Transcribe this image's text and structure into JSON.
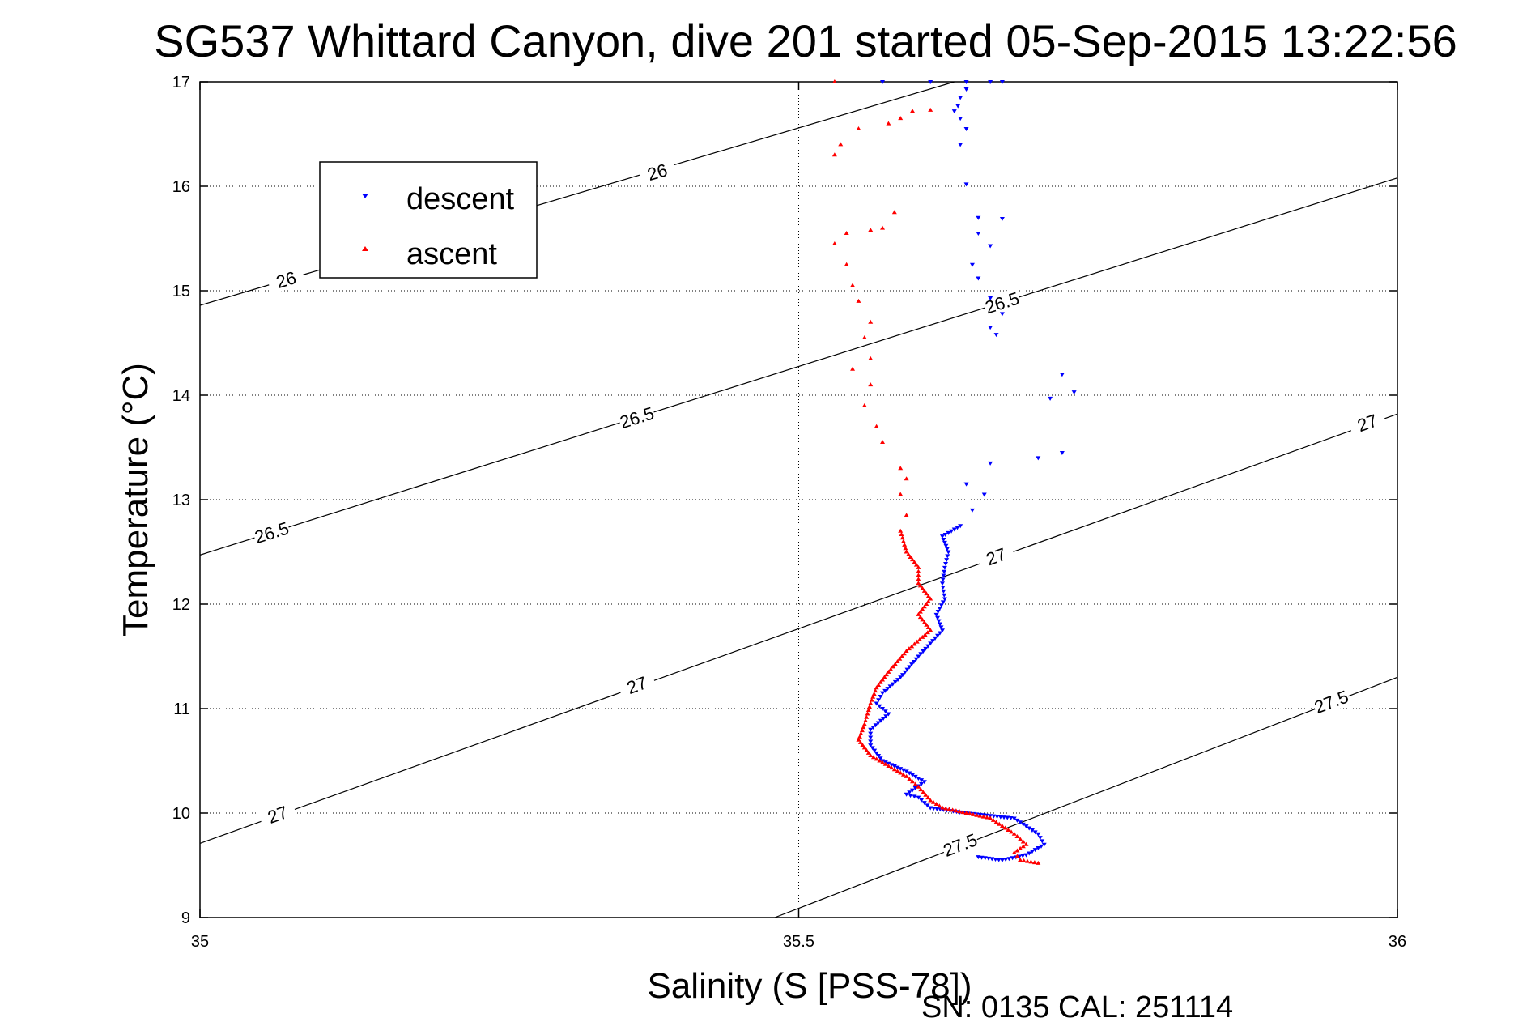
{
  "chart_data": {
    "type": "scatter",
    "title": "SG537 Whittard Canyon, dive 201 started 05-Sep-2015 13:22:56",
    "xlabel": "Salinity (S [PSS-78])",
    "ylabel": "Temperature (°C)",
    "xlim": [
      35,
      36
    ],
    "ylim": [
      9,
      17
    ],
    "x_ticks": [
      "35",
      "35.5",
      "36"
    ],
    "y_ticks": [
      "9",
      "10",
      "11",
      "12",
      "13",
      "14",
      "15",
      "16",
      "17"
    ],
    "grid": true,
    "legend_position": "top-left",
    "footer": "SN: 0135  CAL: 251114",
    "contours": [
      {
        "label": "26",
        "points": [
          [
            35.0,
            14.86
          ],
          [
            35.63,
            17.0
          ]
        ],
        "labels": [
          {
            "text": "26",
            "x": 35.072,
            "y": 15.1
          },
          {
            "text": "26",
            "x": 35.382,
            "y": 16.13
          }
        ]
      },
      {
        "label": "26.5",
        "points": [
          [
            35.0,
            12.47
          ],
          [
            36.0,
            16.08
          ]
        ],
        "labels": [
          {
            "text": "26.5",
            "x": 35.06,
            "y": 12.68
          },
          {
            "text": "26.5",
            "x": 35.365,
            "y": 13.78
          },
          {
            "text": "26.5",
            "x": 35.67,
            "y": 14.88
          }
        ]
      },
      {
        "label": "27",
        "points": [
          [
            35.0,
            9.71
          ],
          [
            36.0,
            13.82
          ]
        ],
        "labels": [
          {
            "text": "27",
            "x": 35.065,
            "y": 9.98
          },
          {
            "text": "27",
            "x": 35.365,
            "y": 11.22
          },
          {
            "text": "27",
            "x": 35.665,
            "y": 12.45
          },
          {
            "text": "27",
            "x": 35.975,
            "y": 13.73
          }
        ]
      },
      {
        "label": "27.5",
        "points": [
          [
            35.48,
            9.0
          ],
          [
            36.0,
            11.3
          ]
        ],
        "labels": [
          {
            "text": "27.5",
            "x": 35.635,
            "y": 9.69
          },
          {
            "text": "27.5",
            "x": 35.945,
            "y": 11.06
          }
        ]
      }
    ],
    "series": [
      {
        "name": "descent",
        "color": "#0000ff",
        "marker": "triangle-down",
        "points": [
          [
            35.57,
            17.0
          ],
          [
            35.61,
            17.0
          ],
          [
            35.64,
            17.0
          ],
          [
            35.66,
            17.0
          ],
          [
            35.67,
            17.0
          ],
          [
            35.64,
            16.93
          ],
          [
            35.635,
            16.85
          ],
          [
            35.633,
            16.77
          ],
          [
            35.63,
            16.72
          ],
          [
            35.635,
            16.65
          ],
          [
            35.64,
            16.55
          ],
          [
            35.635,
            16.4
          ],
          [
            35.64,
            16.02
          ],
          [
            35.65,
            15.7
          ],
          [
            35.67,
            15.69
          ],
          [
            35.65,
            15.55
          ],
          [
            35.66,
            15.43
          ],
          [
            35.645,
            15.25
          ],
          [
            35.65,
            15.12
          ],
          [
            35.66,
            14.93
          ],
          [
            35.67,
            14.78
          ],
          [
            35.66,
            14.65
          ],
          [
            35.665,
            14.58
          ],
          [
            35.72,
            14.2
          ],
          [
            35.73,
            14.03
          ],
          [
            35.71,
            13.97
          ],
          [
            35.72,
            13.45
          ],
          [
            35.7,
            13.4
          ],
          [
            35.66,
            13.35
          ],
          [
            35.64,
            13.15
          ],
          [
            35.655,
            13.05
          ],
          [
            35.645,
            12.9
          ],
          [
            35.635,
            12.75
          ],
          [
            35.62,
            12.65
          ],
          [
            35.625,
            12.5
          ],
          [
            35.622,
            12.35
          ],
          [
            35.62,
            12.2
          ],
          [
            35.622,
            12.05
          ],
          [
            35.615,
            11.9
          ],
          [
            35.62,
            11.75
          ],
          [
            35.6,
            11.5
          ],
          [
            35.585,
            11.3
          ],
          [
            35.57,
            11.15
          ],
          [
            35.565,
            11.05
          ],
          [
            35.575,
            10.95
          ],
          [
            35.56,
            10.8
          ],
          [
            35.56,
            10.65
          ],
          [
            35.57,
            10.5
          ],
          [
            35.59,
            10.4
          ],
          [
            35.605,
            10.3
          ],
          [
            35.59,
            10.18
          ],
          [
            35.6,
            10.15
          ],
          [
            35.61,
            10.05
          ],
          [
            35.64,
            10.0
          ],
          [
            35.68,
            9.95
          ],
          [
            35.7,
            9.8
          ],
          [
            35.705,
            9.7
          ],
          [
            35.69,
            9.6
          ],
          [
            35.67,
            9.55
          ],
          [
            35.65,
            9.58
          ]
        ]
      },
      {
        "name": "ascent",
        "color": "#ff0000",
        "marker": "triangle-up",
        "points": [
          [
            35.53,
            17.0
          ],
          [
            35.61,
            16.73
          ],
          [
            35.595,
            16.72
          ],
          [
            35.585,
            16.65
          ],
          [
            35.575,
            16.6
          ],
          [
            35.55,
            16.55
          ],
          [
            35.535,
            16.4
          ],
          [
            35.53,
            16.3
          ],
          [
            35.58,
            15.75
          ],
          [
            35.57,
            15.6
          ],
          [
            35.56,
            15.58
          ],
          [
            35.54,
            15.55
          ],
          [
            35.53,
            15.45
          ],
          [
            35.54,
            15.25
          ],
          [
            35.545,
            15.05
          ],
          [
            35.55,
            14.9
          ],
          [
            35.56,
            14.7
          ],
          [
            35.555,
            14.55
          ],
          [
            35.56,
            14.35
          ],
          [
            35.545,
            14.25
          ],
          [
            35.56,
            14.1
          ],
          [
            35.555,
            13.9
          ],
          [
            35.565,
            13.7
          ],
          [
            35.57,
            13.55
          ],
          [
            35.585,
            13.3
          ],
          [
            35.59,
            13.2
          ],
          [
            35.585,
            13.05
          ],
          [
            35.59,
            12.85
          ],
          [
            35.585,
            12.7
          ],
          [
            35.59,
            12.5
          ],
          [
            35.6,
            12.35
          ],
          [
            35.6,
            12.2
          ],
          [
            35.61,
            12.05
          ],
          [
            35.6,
            11.9
          ],
          [
            35.61,
            11.75
          ],
          [
            35.59,
            11.55
          ],
          [
            35.575,
            11.35
          ],
          [
            35.565,
            11.2
          ],
          [
            35.56,
            11.05
          ],
          [
            35.555,
            10.85
          ],
          [
            35.55,
            10.7
          ],
          [
            35.56,
            10.55
          ],
          [
            35.575,
            10.45
          ],
          [
            35.59,
            10.35
          ],
          [
            35.6,
            10.25
          ],
          [
            35.61,
            10.12
          ],
          [
            35.62,
            10.05
          ],
          [
            35.64,
            10.0
          ],
          [
            35.66,
            9.95
          ],
          [
            35.68,
            9.8
          ],
          [
            35.69,
            9.7
          ],
          [
            35.68,
            9.62
          ],
          [
            35.685,
            9.55
          ],
          [
            35.7,
            9.52
          ]
        ]
      }
    ]
  }
}
